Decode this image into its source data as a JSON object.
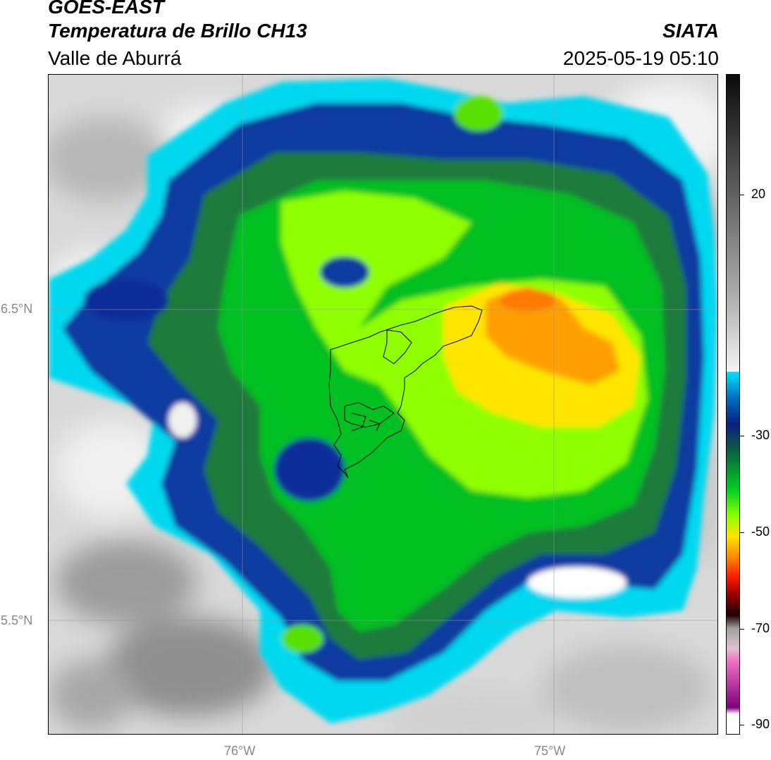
{
  "header": {
    "satellite": "GOES-EAST",
    "product": "Temperatura de Brillo CH13",
    "region": "Valle de Aburrá",
    "agency": "SIATA",
    "timestamp": "2025-05-19 05:10"
  },
  "map": {
    "lat_labels": [
      "6.5°N",
      "5.5°N"
    ],
    "lon_labels": [
      "76°W",
      "75°W"
    ],
    "colors": {
      "warm_gray": "#c8c8c8",
      "cyan": "#00d8f0",
      "dark_blue": "#0a2a8a",
      "green": "#00c020",
      "lime": "#9aff00",
      "yellow": "#ffe000",
      "orange": "#ff9a00"
    }
  },
  "colorbar": {
    "labels": [
      "20",
      "-30",
      "-50",
      "-70",
      "-90"
    ],
    "values": [
      20,
      -30,
      -50,
      -70,
      -90
    ],
    "vmin": -92,
    "vmax": 45
  }
}
